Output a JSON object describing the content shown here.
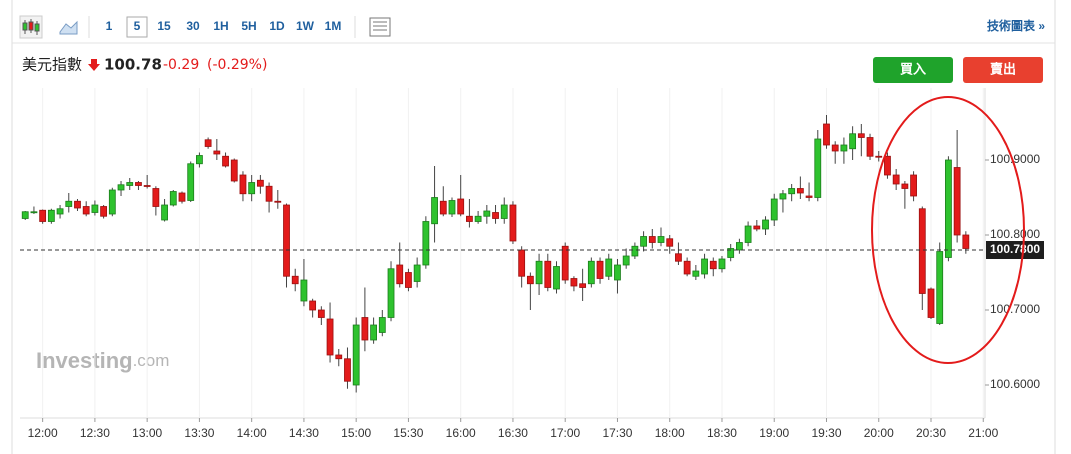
{
  "toolbar": {
    "intervals": [
      "1",
      "5",
      "15",
      "30",
      "1H",
      "5H",
      "1D",
      "1W",
      "1M"
    ],
    "selected": "5",
    "link": "技術圖表 »"
  },
  "header": {
    "name": "美元指數",
    "price": "100.78",
    "change": "-0.29",
    "change_pct": "(-0.29%)"
  },
  "buttons": {
    "buy": "買入",
    "sell": "賣出"
  },
  "watermark": {
    "brand": "Investing",
    "suffix": ".com"
  },
  "chart_data": {
    "type": "candlestick",
    "up_color": "#2ec22e",
    "down_color": "#e31b1b",
    "xlim": [
      "11:47",
      "21:01"
    ],
    "xticks": [
      "12:00",
      "12:30",
      "13:00",
      "13:30",
      "14:00",
      "14:30",
      "15:00",
      "15:30",
      "16:00",
      "16:30",
      "17:00",
      "17:30",
      "18:00",
      "18:30",
      "19:00",
      "19:30",
      "20:00",
      "20:30",
      "21:00"
    ],
    "ylim": [
      100.556,
      100.996
    ],
    "yticks": [
      {
        "value": 100.6,
        "label": "100.6000"
      },
      {
        "value": 100.7,
        "label": "100.7000"
      },
      {
        "value": 100.8,
        "label": "100.8000"
      },
      {
        "value": 100.9,
        "label": "100.9000"
      }
    ],
    "last_price": {
      "value": 100.78,
      "label": "100.7800"
    },
    "x": [
      "11:50",
      "11:55",
      "12:00",
      "12:05",
      "12:10",
      "12:15",
      "12:20",
      "12:25",
      "12:30",
      "12:35",
      "12:40",
      "12:45",
      "12:50",
      "12:55",
      "13:00",
      "13:05",
      "13:10",
      "13:15",
      "13:20",
      "13:25",
      "13:30",
      "13:35",
      "13:40",
      "13:45",
      "13:50",
      "13:55",
      "14:00",
      "14:05",
      "14:10",
      "14:15",
      "14:20",
      "14:25",
      "14:30",
      "14:35",
      "14:40",
      "14:45",
      "14:50",
      "14:55",
      "15:00",
      "15:05",
      "15:10",
      "15:15",
      "15:20",
      "15:25",
      "15:30",
      "15:35",
      "15:40",
      "15:45",
      "15:50",
      "15:55",
      "16:00",
      "16:05",
      "16:10",
      "16:15",
      "16:20",
      "16:25",
      "16:30",
      "16:35",
      "16:40",
      "16:45",
      "16:50",
      "16:55",
      "17:00",
      "17:05",
      "17:10",
      "17:15",
      "17:20",
      "17:25",
      "17:30",
      "17:35",
      "17:40",
      "17:45",
      "17:50",
      "17:55",
      "18:00",
      "18:05",
      "18:10",
      "18:15",
      "18:20",
      "18:25",
      "18:30",
      "18:35",
      "18:40",
      "18:45",
      "18:50",
      "18:55",
      "19:00",
      "19:05",
      "19:10",
      "19:15",
      "19:20",
      "19:25",
      "19:30",
      "19:35",
      "19:40",
      "19:45",
      "19:50",
      "19:55",
      "20:00",
      "20:05",
      "20:10",
      "20:15",
      "20:20",
      "20:25",
      "20:30",
      "20:35",
      "20:40",
      "20:45",
      "20:50"
    ],
    "open": [
      100.822,
      100.831,
      100.833,
      100.818,
      100.828,
      100.838,
      100.845,
      100.838,
      100.83,
      100.838,
      100.828,
      100.86,
      100.866,
      100.87,
      100.866,
      100.862,
      100.82,
      100.84,
      100.856,
      100.846,
      100.895,
      100.927,
      100.912,
      100.905,
      100.9,
      100.88,
      100.855,
      100.873,
      100.865,
      100.845,
      100.84,
      100.745,
      100.712,
      100.712,
      100.7,
      100.688,
      100.64,
      100.635,
      100.6,
      100.69,
      100.66,
      100.67,
      100.69,
      100.76,
      100.75,
      100.738,
      100.76,
      100.815,
      100.845,
      100.828,
      100.848,
      100.825,
      100.818,
      100.825,
      100.83,
      100.822,
      100.84,
      100.78,
      100.745,
      100.735,
      100.765,
      100.728,
      100.785,
      100.742,
      100.735,
      100.735,
      100.765,
      100.745,
      100.74,
      100.76,
      100.772,
      100.785,
      100.798,
      100.79,
      100.795,
      100.775,
      100.765,
      100.745,
      100.748,
      100.765,
      100.755,
      100.77,
      100.78,
      100.79,
      100.812,
      100.808,
      100.82,
      100.848,
      100.855,
      100.862,
      100.852,
      100.85,
      100.948,
      100.92,
      100.912,
      100.915,
      100.935,
      100.93,
      100.905,
      100.905,
      100.88,
      100.868,
      100.88,
      100.835,
      100.728,
      100.682,
      100.77,
      100.89,
      100.8
    ],
    "high": [
      100.832,
      100.838,
      100.834,
      100.835,
      100.84,
      100.856,
      100.848,
      100.845,
      100.846,
      100.84,
      100.863,
      100.872,
      100.876,
      100.872,
      100.88,
      100.865,
      100.848,
      100.86,
      100.858,
      100.898,
      100.91,
      100.93,
      100.928,
      100.91,
      100.902,
      100.885,
      100.88,
      100.88,
      100.87,
      100.86,
      100.842,
      100.755,
      100.768,
      100.715,
      100.705,
      100.71,
      100.648,
      100.65,
      100.69,
      100.73,
      100.69,
      100.7,
      100.765,
      100.79,
      100.755,
      100.77,
      100.825,
      100.892,
      100.865,
      100.85,
      100.88,
      100.848,
      100.832,
      100.84,
      100.84,
      100.85,
      100.845,
      100.785,
      100.75,
      100.775,
      100.775,
      100.765,
      100.79,
      100.745,
      100.755,
      100.77,
      100.77,
      100.775,
      100.768,
      100.782,
      100.79,
      100.805,
      100.808,
      100.81,
      100.8,
      100.79,
      100.77,
      100.76,
      100.775,
      100.77,
      100.772,
      100.788,
      100.795,
      100.818,
      100.82,
      100.825,
      100.855,
      100.86,
      100.868,
      100.878,
      100.87,
      100.94,
      100.96,
      100.925,
      100.93,
      100.945,
      100.948,
      100.935,
      100.912,
      100.91,
      100.888,
      100.872,
      100.885,
      100.838,
      100.73,
      100.79,
      100.905,
      100.94,
      100.805
    ],
    "low": [
      100.82,
      100.828,
      100.815,
      100.815,
      100.822,
      100.83,
      100.832,
      100.825,
      100.826,
      100.822,
      100.825,
      100.852,
      100.86,
      100.86,
      100.862,
      100.826,
      100.818,
      100.838,
      100.842,
      100.844,
      100.89,
      100.915,
      100.9,
      100.89,
      100.87,
      100.845,
      100.845,
      100.855,
      100.83,
      100.835,
      100.73,
      100.725,
      100.705,
      100.69,
      100.68,
      100.63,
      100.625,
      100.595,
      100.59,
      100.645,
      100.655,
      100.665,
      100.685,
      100.73,
      100.725,
      100.73,
      100.755,
      100.79,
      100.825,
      100.824,
      100.825,
      100.81,
      100.815,
      100.815,
      100.815,
      100.815,
      100.788,
      100.73,
      100.7,
      100.72,
      100.725,
      100.722,
      100.735,
      100.725,
      100.712,
      100.73,
      100.735,
      100.74,
      100.722,
      100.755,
      100.768,
      100.778,
      100.782,
      100.785,
      100.775,
      100.76,
      100.745,
      100.74,
      100.742,
      100.745,
      100.75,
      100.765,
      100.775,
      100.785,
      100.805,
      100.8,
      100.812,
      100.83,
      100.845,
      100.848,
      100.845,
      100.845,
      100.915,
      100.895,
      100.895,
      100.9,
      100.905,
      100.9,
      100.898,
      100.875,
      100.86,
      100.835,
      100.845,
      100.7,
      100.688,
      100.68,
      100.765,
      100.79,
      100.775
    ],
    "close": [
      100.831,
      100.831,
      100.818,
      100.833,
      100.835,
      100.845,
      100.836,
      100.828,
      100.84,
      100.825,
      100.86,
      100.867,
      100.87,
      100.866,
      100.865,
      100.838,
      100.84,
      100.858,
      100.845,
      100.895,
      100.906,
      100.918,
      100.908,
      100.892,
      100.872,
      100.855,
      100.87,
      100.865,
      100.845,
      100.844,
      100.745,
      100.735,
      100.74,
      100.7,
      100.69,
      100.64,
      100.635,
      100.605,
      100.68,
      100.66,
      100.68,
      100.69,
      100.755,
      100.735,
      100.73,
      100.76,
      100.818,
      100.85,
      100.828,
      100.846,
      100.828,
      100.818,
      100.825,
      100.832,
      100.822,
      100.84,
      100.792,
      100.745,
      100.735,
      100.765,
      100.73,
      100.758,
      100.74,
      100.732,
      100.73,
      100.765,
      100.742,
      100.768,
      100.76,
      100.772,
      100.785,
      100.798,
      100.79,
      100.798,
      100.785,
      100.765,
      100.748,
      100.752,
      100.768,
      100.755,
      100.768,
      100.782,
      100.79,
      100.812,
      100.808,
      100.82,
      100.848,
      100.855,
      100.862,
      100.856,
      100.85,
      100.928,
      100.92,
      100.912,
      100.92,
      100.935,
      100.93,
      100.905,
      100.904,
      100.88,
      100.868,
      100.862,
      100.852,
      100.722,
      100.69,
      100.778,
      100.9,
      100.8,
      100.782
    ]
  }
}
